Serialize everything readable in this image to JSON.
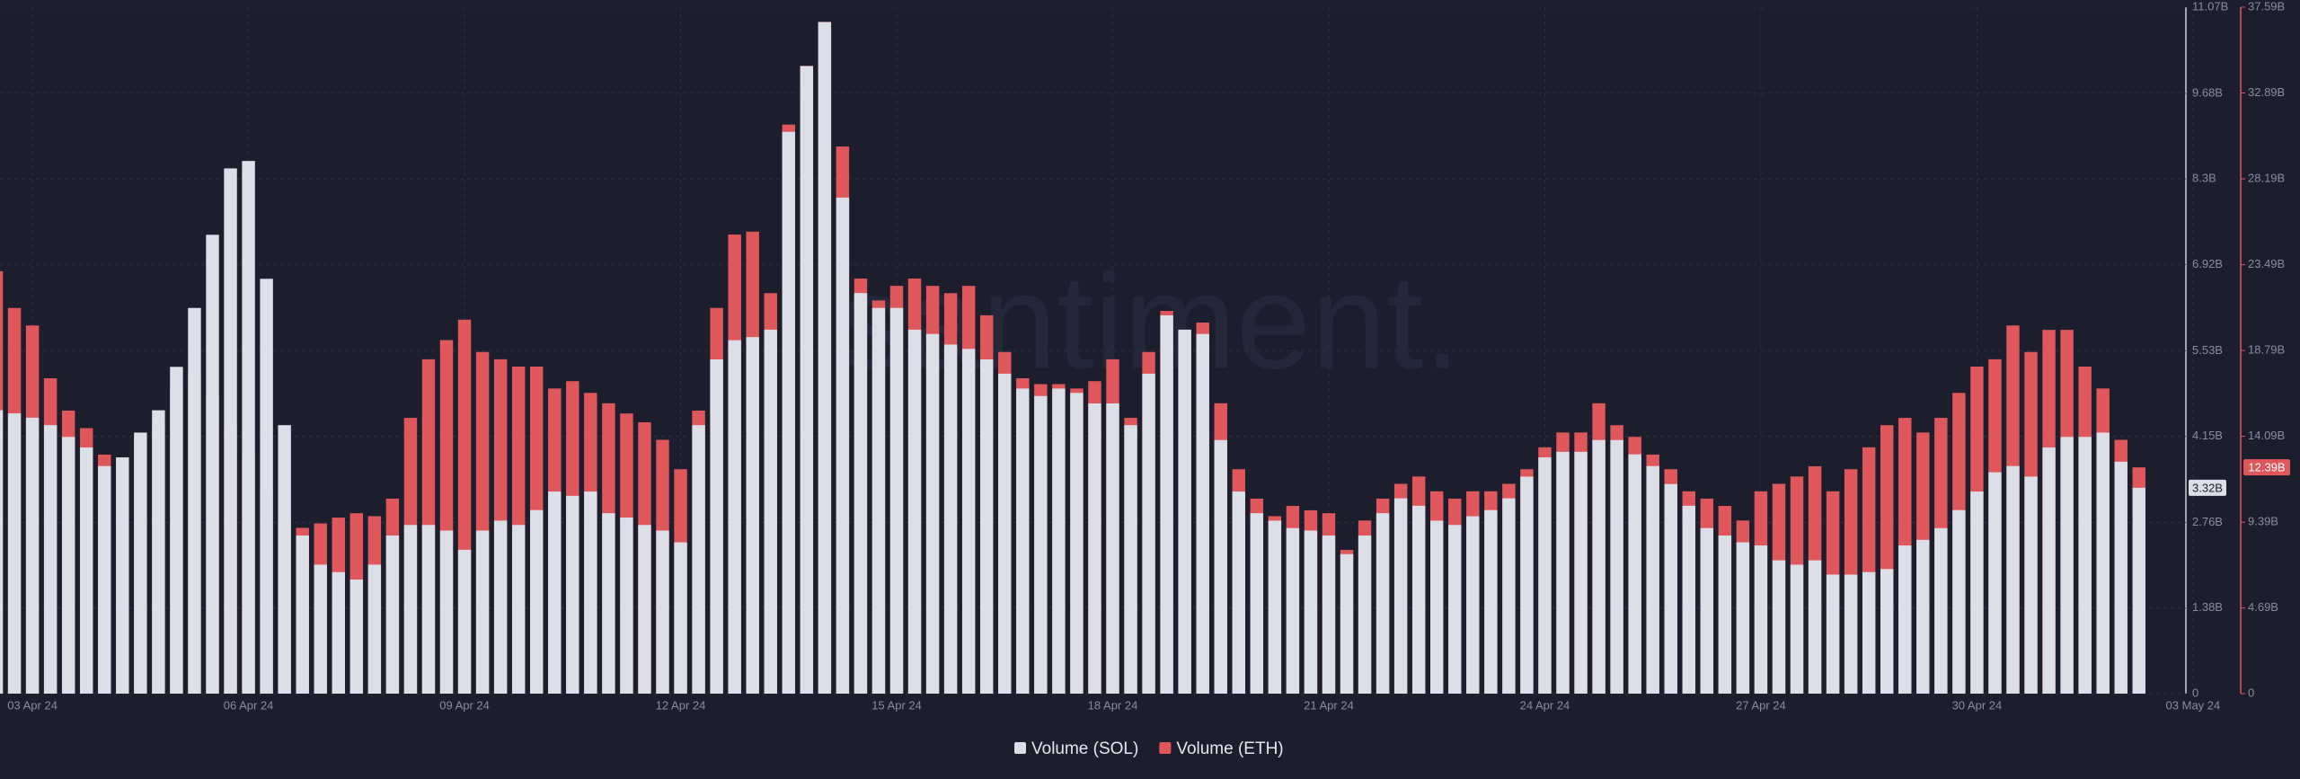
{
  "chart_data": {
    "type": "bar",
    "watermark": "santiment.",
    "legend": "bottom",
    "grid": true,
    "categories": [
      null,
      null,
      "03 Apr 24",
      null,
      null,
      null,
      null,
      null,
      null,
      null,
      null,
      null,
      null,
      null,
      "06 Apr 24",
      null,
      null,
      null,
      null,
      null,
      null,
      null,
      null,
      null,
      null,
      null,
      "09 Apr 24",
      null,
      null,
      null,
      null,
      null,
      null,
      null,
      null,
      null,
      null,
      null,
      "12 Apr 24",
      null,
      null,
      null,
      null,
      null,
      null,
      null,
      null,
      null,
      null,
      null,
      "15 Apr 24",
      null,
      null,
      null,
      null,
      null,
      null,
      null,
      null,
      null,
      null,
      null,
      "18 Apr 24",
      null,
      null,
      null,
      null,
      null,
      null,
      null,
      null,
      null,
      null,
      null,
      "21 Apr 24",
      null,
      null,
      null,
      null,
      null,
      null,
      null,
      null,
      null,
      null,
      null,
      "24 Apr 24",
      null,
      null,
      null,
      null,
      null,
      null,
      null,
      null,
      null,
      null,
      null,
      "27 Apr 24",
      null,
      null,
      null,
      null,
      null,
      null,
      null,
      null,
      null,
      null,
      null,
      "30 Apr 24",
      null,
      null,
      null,
      null,
      null,
      null,
      null,
      null,
      null,
      null,
      null,
      "03 May 24"
    ],
    "ylim": [
      0,
      11.07
    ],
    "yticks": [
      0,
      {
        "value": 1.38,
        "label": "1.38B"
      },
      {
        "value": 2.76,
        "label": "2.76B"
      },
      {
        "value": 4.15,
        "label": "4.15B"
      },
      {
        "value": 5.53,
        "label": "5.53B"
      },
      {
        "value": 6.92,
        "label": "6.92B"
      },
      {
        "value": 8.3,
        "label": "8.3B"
      },
      {
        "value": 9.68,
        "label": "9.68B"
      },
      {
        "value": 11.07,
        "label": "11.07B"
      }
    ],
    "y2lim": [
      0,
      37.59
    ],
    "y2ticks": [
      0,
      {
        "value": 4.69,
        "label": "4.69B"
      },
      {
        "value": 9.39,
        "label": "9.39B"
      },
      {
        "value": 14.09,
        "label": "14.09B"
      },
      {
        "value": 18.79,
        "label": "18.79B"
      },
      {
        "value": 23.49,
        "label": "23.49B"
      },
      {
        "value": 28.19,
        "label": "28.19B"
      },
      {
        "value": 32.89,
        "label": "32.89B"
      },
      {
        "value": 37.59,
        "label": "37.59B"
      }
    ],
    "series": [
      {
        "name": "Volume (SOL)",
        "color": "#dcdee8",
        "axis": "y",
        "values": [
          4.57,
          4.52,
          4.45,
          4.33,
          4.14,
          3.97,
          3.67,
          3.81,
          4.21,
          4.57,
          5.27,
          6.22,
          7.4,
          8.47,
          8.59,
          6.69,
          4.33,
          2.55,
          2.08,
          1.96,
          1.84,
          2.08,
          2.55,
          2.72,
          2.72,
          2.63,
          2.32,
          2.63,
          2.79,
          2.72,
          2.96,
          3.26,
          3.19,
          3.26,
          2.91,
          2.84,
          2.72,
          2.63,
          2.44,
          4.33,
          5.39,
          5.7,
          5.75,
          5.87,
          9.06,
          10.12,
          10.83,
          8.0,
          6.46,
          6.22,
          6.22,
          5.87,
          5.8,
          5.63,
          5.56,
          5.39,
          5.16,
          4.92,
          4.8,
          4.92,
          4.85,
          4.68,
          4.68,
          4.33,
          5.16,
          6.1,
          5.87,
          5.8,
          4.09,
          3.26,
          2.91,
          2.79,
          2.67,
          2.63,
          2.55,
          2.25,
          2.55,
          2.91,
          3.15,
          3.03,
          2.79,
          2.72,
          2.86,
          2.96,
          3.15,
          3.5,
          3.81,
          3.9,
          3.9,
          4.09,
          4.09,
          3.86,
          3.67,
          3.38,
          3.03,
          2.67,
          2.55,
          2.44,
          2.39,
          2.15,
          2.08,
          2.15,
          1.92,
          1.92,
          1.96,
          2.01,
          2.39,
          2.48,
          2.67,
          2.96,
          3.26,
          3.57,
          3.67,
          3.5,
          3.97,
          4.14,
          4.14,
          4.21,
          3.74,
          3.32,
          null,
          null,
          null
        ],
        "value_labels": [
          null,
          null,
          null,
          null,
          null,
          null,
          null,
          null,
          null,
          null,
          null,
          null,
          null,
          null,
          null,
          null,
          null,
          null,
          null,
          null,
          null,
          null,
          null,
          null,
          null,
          null,
          null,
          null,
          null,
          null,
          null,
          null,
          null,
          null,
          null,
          null,
          null,
          null,
          null,
          null,
          null,
          null,
          null,
          null,
          null,
          null,
          null,
          null,
          null,
          null,
          null,
          null,
          null,
          null,
          null,
          null,
          null,
          null,
          null,
          null,
          null,
          null,
          null,
          null,
          null,
          null,
          null,
          null,
          null,
          null,
          null,
          null,
          null,
          null,
          null,
          null,
          null,
          null,
          null,
          null,
          null,
          null,
          null,
          null,
          null,
          null,
          null,
          null,
          null,
          null,
          null,
          null,
          null,
          null,
          null,
          null,
          null,
          null,
          null,
          null,
          null,
          null,
          null,
          null,
          null,
          null,
          null,
          null,
          null,
          null,
          null,
          null,
          null,
          null,
          null,
          null,
          null,
          null,
          null,
          "3.32B",
          null,
          null,
          null
        ]
      },
      {
        "name": "Volume (ETH)",
        "color": "#e0575b",
        "axis": "y2",
        "values": [
          23.13,
          21.12,
          20.16,
          17.27,
          15.5,
          14.54,
          13.09,
          12.93,
          14.06,
          14.7,
          16.71,
          17.51,
          16.31,
          14.7,
          13.09,
          11.08,
          9.48,
          9.08,
          9.32,
          9.64,
          9.88,
          9.72,
          10.68,
          15.1,
          18.31,
          19.36,
          20.48,
          18.71,
          18.31,
          17.91,
          17.91,
          16.71,
          17.11,
          16.47,
          15.9,
          15.34,
          14.86,
          13.9,
          12.29,
          15.5,
          21.12,
          25.14,
          25.3,
          21.93,
          31.16,
          34.38,
          36.79,
          29.96,
          22.73,
          21.53,
          22.33,
          22.73,
          22.33,
          21.93,
          22.33,
          20.72,
          18.71,
          17.27,
          16.95,
          16.95,
          16.71,
          17.11,
          18.31,
          15.1,
          18.71,
          20.96,
          19.92,
          20.32,
          15.9,
          12.29,
          10.68,
          9.72,
          10.28,
          10.04,
          9.88,
          7.87,
          9.48,
          10.68,
          11.49,
          11.89,
          11.08,
          10.68,
          11.08,
          11.08,
          11.49,
          12.29,
          13.49,
          14.3,
          14.3,
          15.9,
          14.7,
          14.06,
          13.09,
          12.29,
          11.08,
          10.68,
          10.28,
          9.48,
          11.08,
          11.49,
          11.89,
          12.45,
          11.08,
          12.29,
          13.49,
          14.7,
          15.1,
          14.3,
          15.1,
          16.47,
          17.91,
          18.31,
          20.16,
          18.71,
          19.92,
          19.92,
          17.91,
          16.71,
          13.9,
          12.39,
          null,
          null,
          null
        ],
        "value_labels": [
          null,
          null,
          null,
          null,
          null,
          null,
          null,
          null,
          null,
          null,
          null,
          null,
          null,
          null,
          null,
          null,
          null,
          null,
          null,
          null,
          null,
          null,
          null,
          null,
          null,
          null,
          null,
          null,
          null,
          null,
          null,
          null,
          null,
          null,
          null,
          null,
          null,
          null,
          null,
          null,
          null,
          null,
          null,
          null,
          null,
          null,
          null,
          null,
          null,
          null,
          null,
          null,
          null,
          null,
          null,
          null,
          null,
          null,
          null,
          null,
          null,
          null,
          null,
          null,
          null,
          null,
          null,
          null,
          null,
          null,
          null,
          null,
          null,
          null,
          null,
          null,
          null,
          null,
          null,
          null,
          null,
          null,
          null,
          null,
          null,
          null,
          null,
          null,
          null,
          null,
          null,
          null,
          null,
          null,
          null,
          null,
          null,
          null,
          null,
          null,
          null,
          null,
          null,
          null,
          null,
          null,
          null,
          null,
          null,
          null,
          null,
          null,
          null,
          null,
          null,
          null,
          null,
          null,
          null,
          "12.39B",
          null,
          null,
          null
        ]
      }
    ]
  }
}
